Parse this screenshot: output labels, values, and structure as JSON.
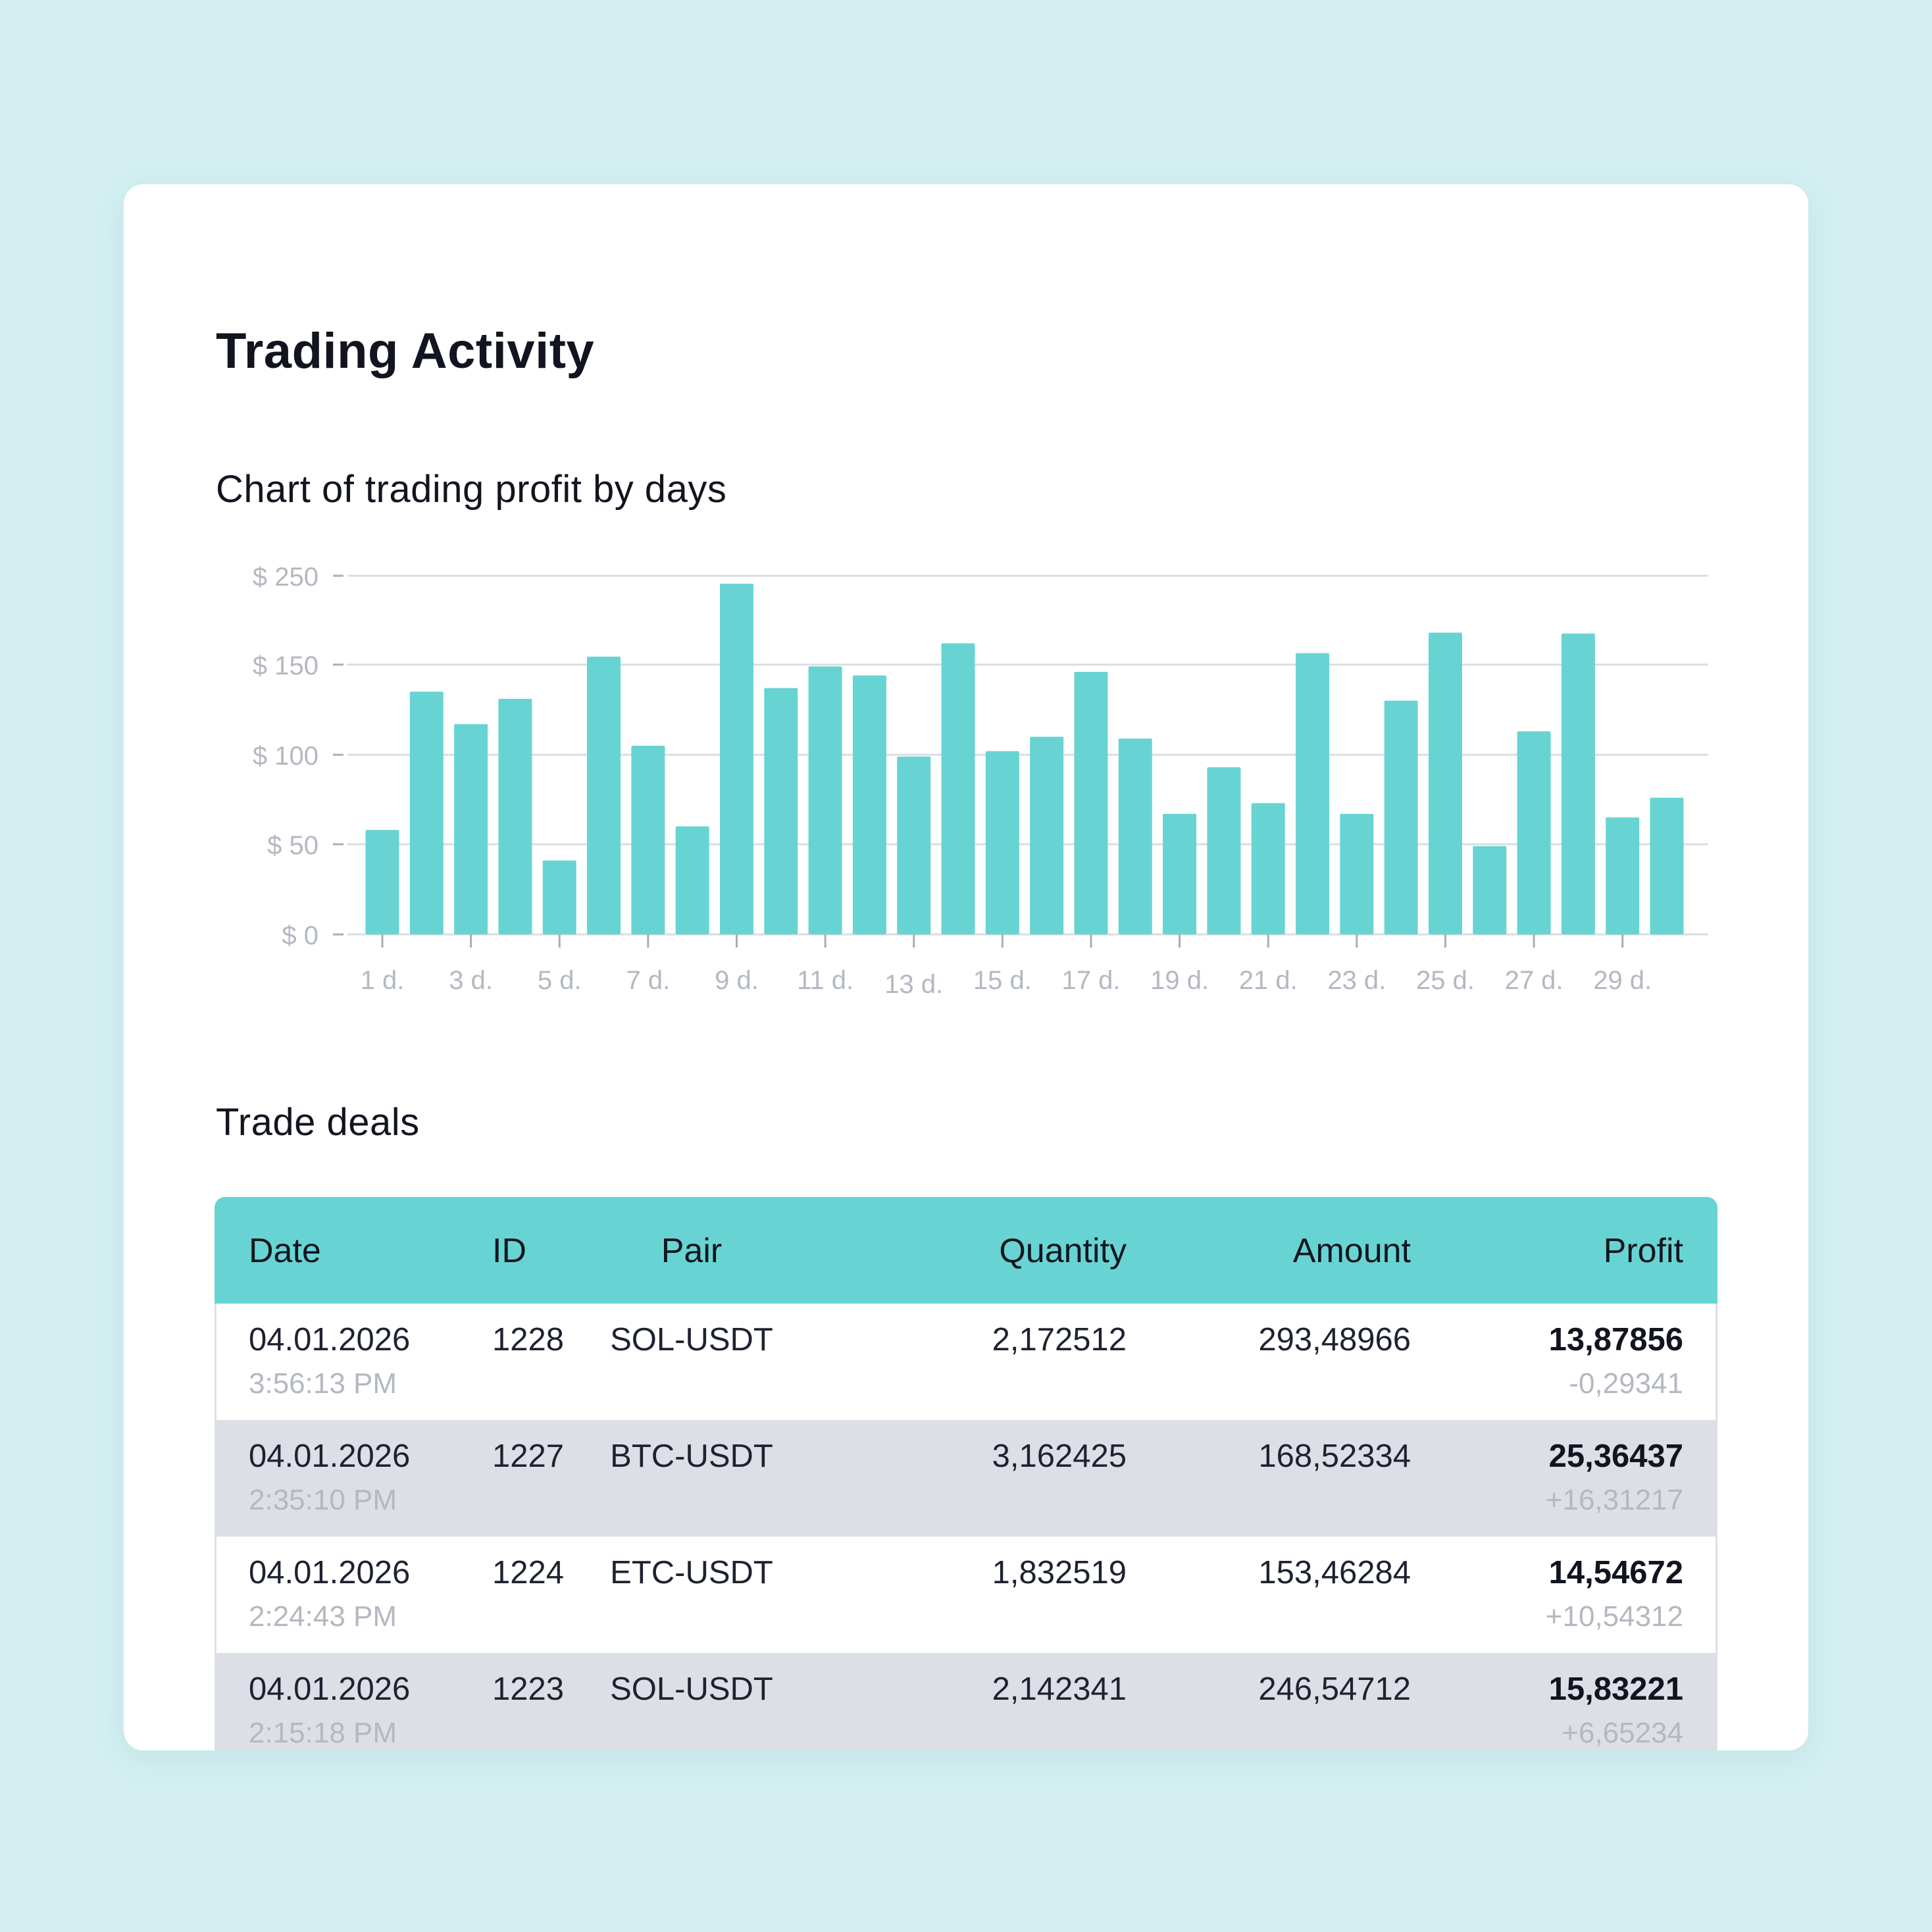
{
  "page_title": "Trading Activity",
  "chart_title": "Chart of trading profit by days",
  "deals_title": "Trade deals",
  "colors": {
    "background": "#d3eff1",
    "accent": "#67d4d3",
    "grid": "#dadde2",
    "axis_text": "#b4b8c0"
  },
  "chart_data": {
    "type": "bar",
    "title": "Chart of trading profit by days",
    "xlabel": "",
    "ylabel": "",
    "ylim": [
      0,
      250
    ],
    "grid": true,
    "y_ticks": [
      {
        "value": 0,
        "label": "$ 0"
      },
      {
        "value": 50,
        "label": "$ 50"
      },
      {
        "value": 100,
        "label": "$ 100"
      },
      {
        "value": 150,
        "label": "$ 150"
      },
      {
        "value": 250,
        "label": "$ 250"
      }
    ],
    "categories": [
      "1 d.",
      "2 d.",
      "3 d.",
      "4 d.",
      "5 d.",
      "6 d.",
      "7 d.",
      "8 d.",
      "9 d.",
      "10 d.",
      "11 d.",
      "12 d.",
      "13 d.",
      "14 d.",
      "15 d.",
      "16 d.",
      "17 d.",
      "18 d.",
      "19 d.",
      "20 d.",
      "21 d.",
      "22 d.",
      "23 d.",
      "24 d.",
      "25 d.",
      "26 d.",
      "27 d.",
      "28 d.",
      "29 d.",
      "30 d."
    ],
    "x_tick_labels": [
      "1 d.",
      "3 d.",
      "5 d.",
      "7 d.",
      "9 d.",
      "11 d.",
      "13 d.",
      "15 d.",
      "17 d.",
      "19 d.",
      "21 d.",
      "23 d.",
      "25 d.",
      "27 d.",
      "29 d."
    ],
    "values": [
      58,
      135,
      117,
      131,
      41,
      159,
      105,
      60,
      241,
      137,
      149,
      144,
      99,
      174,
      102,
      110,
      146,
      109,
      67,
      93,
      73,
      163,
      67,
      130,
      186,
      49,
      113,
      185,
      65,
      76
    ]
  },
  "table": {
    "headers": {
      "date": "Date",
      "id": "ID",
      "pair": "Pair",
      "quantity": "Quantity",
      "amount": "Amount",
      "profit": "Profit"
    },
    "rows": [
      {
        "date": "04.01.2026",
        "time": "3:56:13 PM",
        "id": "1228",
        "pair": "SOL-USDT",
        "quantity": "2,172512",
        "amount": "293,48966",
        "profit": "13,87856",
        "change": "-0,29341"
      },
      {
        "date": "04.01.2026",
        "time": "2:35:10 PM",
        "id": "1227",
        "pair": "BTC-USDT",
        "quantity": "3,162425",
        "amount": "168,52334",
        "profit": "25,36437",
        "change": "+16,31217"
      },
      {
        "date": "04.01.2026",
        "time": "2:24:43 PM",
        "id": "1224",
        "pair": "ETC-USDT",
        "quantity": "1,832519",
        "amount": "153,46284",
        "profit": "14,54672",
        "change": "+10,54312"
      },
      {
        "date": "04.01.2026",
        "time": "2:15:18 PM",
        "id": "1223",
        "pair": "SOL-USDT",
        "quantity": "2,142341",
        "amount": "246,54712",
        "profit": "15,83221",
        "change": "+6,65234"
      }
    ]
  }
}
